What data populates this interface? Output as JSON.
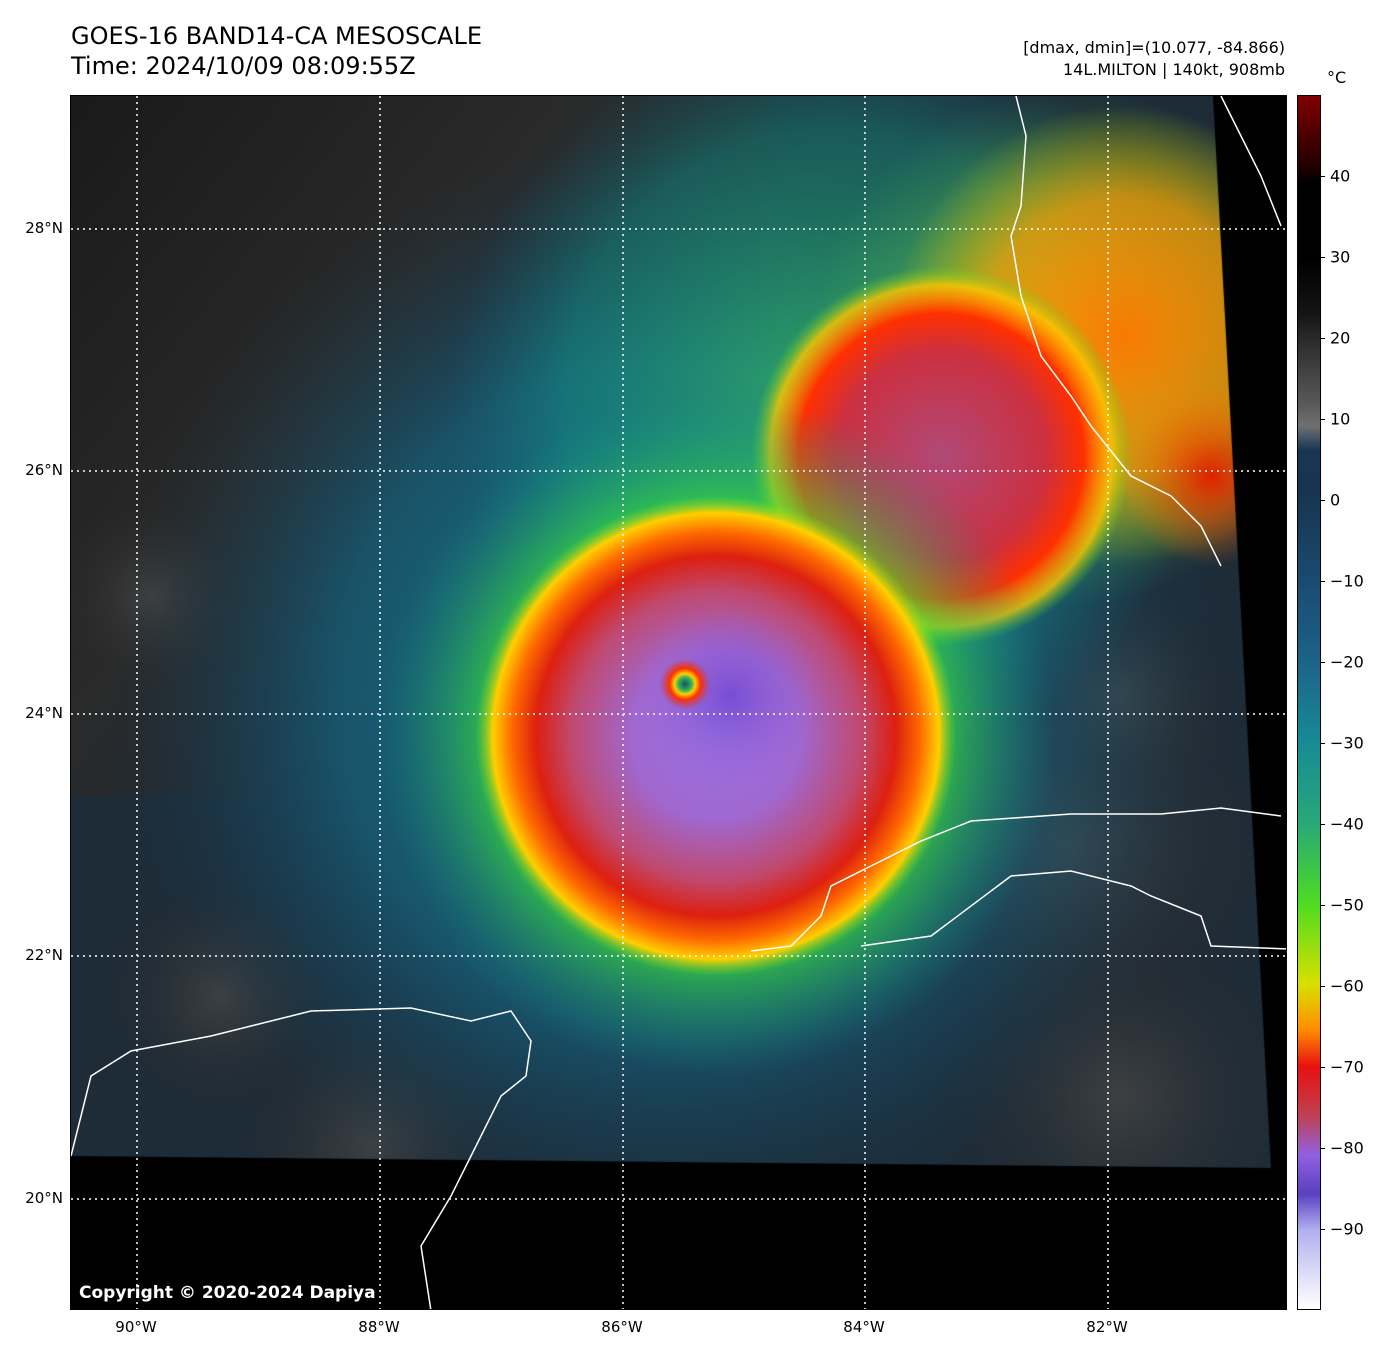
{
  "header": {
    "title": "GOES-16 BAND14-CA MESOSCALE",
    "time": "Time: 2024/10/09 08:09:55Z",
    "range_info": "[dmax, dmin]=(10.077, -84.866)",
    "storm_info": "14L.MILTON | 140kt, 908mb"
  },
  "map": {
    "copyright": "Copyright © 2020-2024 Dapiya",
    "lon_ticks": [
      "90°W",
      "88°W",
      "86°W",
      "84°W",
      "82°W"
    ],
    "lat_ticks": [
      "28°N",
      "26°N",
      "24°N",
      "22°N",
      "20°N"
    ]
  },
  "colorbar": {
    "unit": "°C",
    "range": [
      -100,
      50
    ],
    "ticks": [
      "40",
      "30",
      "20",
      "10",
      "0",
      "−10",
      "−20",
      "−30",
      "−40",
      "−50",
      "−60",
      "−70",
      "−80",
      "−90"
    ],
    "tick_values": [
      40,
      30,
      20,
      10,
      0,
      -10,
      -20,
      -30,
      -40,
      -50,
      -60,
      -70,
      -80,
      -90
    ]
  }
}
